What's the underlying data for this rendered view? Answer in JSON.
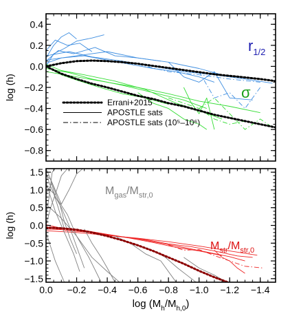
{
  "chart_data": [
    {
      "type": "line",
      "xlabel": "",
      "ylabel": "log (h)",
      "xlim": [
        0.0,
        -1.5
      ],
      "ylim": [
        -0.9,
        0.5
      ],
      "xticks": [
        0.0,
        -0.2,
        -0.4,
        -0.6,
        -0.8,
        -1.0,
        -1.2,
        -1.4
      ],
      "yticks": [
        0.4,
        0.2,
        0.0,
        -0.2,
        -0.4,
        -0.6,
        -0.8
      ],
      "yticklabels": [
        "0.4",
        "0.2",
        "0.0",
        "−0.2",
        "−0.4",
        "−0.6",
        "−0.8"
      ],
      "xticklabels_shown": false,
      "annotations": [
        {
          "text": "r",
          "sub": "1/2",
          "color": "#1c1cb0"
        },
        {
          "text": "σ",
          "sub": "",
          "color": "#1aa01a"
        }
      ],
      "legend": {
        "placement": "lower-left",
        "entries": [
          {
            "label": "Errani+2015",
            "style": "dotted"
          },
          {
            "label": "APOSTLE sats",
            "style": "solid"
          },
          {
            "label": "APOSTLE sats (10⁵–10⁶)",
            "style": "dashdot"
          }
        ]
      },
      "colors": {
        "r_half": "#3d8de0",
        "sigma": "#33dd33",
        "model": "#000000"
      },
      "series": [
        {
          "name": "Errani+2015",
          "color": "#000000",
          "style": "dotted",
          "group": "r_half",
          "x": [
            0.0,
            -0.1,
            -0.2,
            -0.3,
            -0.4,
            -0.5,
            -0.6,
            -0.7,
            -0.8,
            -0.9,
            -1.0,
            -1.1,
            -1.2,
            -1.3,
            -1.4,
            -1.5
          ],
          "y": [
            0.0,
            0.03,
            0.05,
            0.055,
            0.05,
            0.04,
            0.025,
            0.005,
            -0.015,
            -0.035,
            -0.055,
            -0.075,
            -0.09,
            -0.105,
            -0.12,
            -0.14
          ]
        },
        {
          "name": "Errani+2015",
          "color": "#000000",
          "style": "dotted",
          "group": "sigma",
          "x": [
            0.0,
            -0.1,
            -0.2,
            -0.3,
            -0.4,
            -0.5,
            -0.6,
            -0.7,
            -0.8,
            -0.9,
            -1.0,
            -1.1,
            -1.2,
            -1.3,
            -1.4,
            -1.5
          ],
          "y": [
            0.0,
            -0.07,
            -0.12,
            -0.165,
            -0.2,
            -0.24,
            -0.28,
            -0.31,
            -0.35,
            -0.38,
            -0.42,
            -0.46,
            -0.49,
            -0.52,
            -0.55,
            -0.58
          ]
        },
        {
          "color": "#3d8de0",
          "style": "solid",
          "group": "r_half",
          "x": [
            0.0,
            -0.05,
            -0.12,
            -0.2,
            -0.3,
            -0.38
          ],
          "y": [
            0.0,
            0.12,
            0.17,
            0.24,
            0.27,
            0.3
          ]
        },
        {
          "color": "#3d8de0",
          "style": "solid",
          "group": "r_half",
          "x": [
            0.0,
            -0.08,
            -0.18,
            -0.32,
            -0.45,
            -0.6,
            -0.75
          ],
          "y": [
            0.05,
            0.15,
            0.12,
            0.18,
            0.1,
            0.08,
            0.05
          ]
        },
        {
          "color": "#3d8de0",
          "style": "solid",
          "group": "r_half",
          "x": [
            0.0,
            -0.1,
            -0.25,
            -0.4,
            -0.55,
            -0.7,
            -0.85,
            -1.0,
            -1.1
          ],
          "y": [
            0.03,
            0.08,
            0.1,
            0.06,
            0.02,
            -0.02,
            -0.05,
            -0.1,
            -0.15
          ]
        },
        {
          "color": "#3d8de0",
          "style": "solid",
          "group": "r_half",
          "x": [
            0.0,
            -0.15,
            -0.3,
            -0.5,
            -0.7,
            -0.9,
            -1.1,
            -1.3,
            -1.48
          ],
          "y": [
            0.1,
            0.14,
            0.09,
            0.05,
            0.0,
            -0.05,
            -0.08,
            -0.12,
            -0.16
          ]
        },
        {
          "color": "#3d8de0",
          "style": "solid",
          "group": "r_half",
          "x": [
            0.0,
            -0.06,
            -0.14,
            -0.22,
            -0.3
          ],
          "y": [
            0.15,
            0.25,
            0.2,
            0.22,
            0.14
          ]
        },
        {
          "color": "#3d8de0",
          "style": "solid",
          "group": "r_half",
          "x": [
            0.0,
            -0.2,
            -0.4,
            -0.6,
            -0.8,
            -1.0,
            -1.15
          ],
          "y": [
            0.06,
            0.1,
            0.14,
            0.08,
            0.04,
            -0.02,
            -0.08
          ]
        },
        {
          "color": "#3d8de0",
          "style": "solid",
          "group": "r_half",
          "x": [
            -0.8,
            -0.9,
            -1.0,
            -1.1,
            -1.2,
            -1.35
          ],
          "y": [
            0.04,
            -0.1,
            -0.15,
            -0.05,
            -0.3,
            -0.32
          ]
        },
        {
          "color": "#3d8de0",
          "style": "solid",
          "group": "r_half",
          "x": [
            0.0,
            -0.05,
            -0.1,
            -0.15,
            -0.2
          ],
          "y": [
            0.08,
            0.2,
            0.28,
            0.32,
            0.26
          ]
        },
        {
          "color": "#3d8de0",
          "style": "dashdot",
          "group": "r_half",
          "x": [
            -0.6,
            -0.8,
            -1.0,
            -1.2,
            -1.4
          ],
          "y": [
            0.02,
            -0.05,
            -0.08,
            -0.12,
            -0.15
          ]
        },
        {
          "color": "#3d8de0",
          "style": "dashdot",
          "group": "r_half",
          "x": [
            -1.0,
            -1.1,
            -1.2,
            -1.3,
            -1.4
          ],
          "y": [
            -0.05,
            -0.3,
            -0.25,
            -0.4,
            -0.2
          ]
        },
        {
          "color": "#33dd33",
          "style": "solid",
          "group": "sigma",
          "x": [
            0.0,
            -0.1,
            -0.2,
            -0.35,
            -0.5,
            -0.65,
            -0.8
          ],
          "y": [
            0.0,
            -0.08,
            -0.13,
            -0.2,
            -0.26,
            -0.3,
            -0.36
          ]
        },
        {
          "color": "#33dd33",
          "style": "solid",
          "group": "sigma",
          "x": [
            0.0,
            -0.15,
            -0.3,
            -0.5,
            -0.7,
            -0.9,
            -1.05
          ],
          "y": [
            -0.02,
            -0.06,
            -0.12,
            -0.18,
            -0.25,
            -0.32,
            -0.4
          ]
        },
        {
          "color": "#33dd33",
          "style": "solid",
          "group": "sigma",
          "x": [
            0.0,
            -0.1,
            -0.25,
            -0.45,
            -0.65,
            -0.85,
            -1.0,
            -1.15
          ],
          "y": [
            0.02,
            -0.04,
            -0.08,
            -0.14,
            -0.22,
            -0.35,
            -0.42,
            -0.5
          ]
        },
        {
          "color": "#33dd33",
          "style": "solid",
          "group": "sigma",
          "x": [
            0.0,
            -0.2,
            -0.4,
            -0.6,
            -0.8,
            -1.0,
            -1.2,
            -1.4
          ],
          "y": [
            -0.05,
            -0.1,
            -0.15,
            -0.2,
            -0.26,
            -0.33,
            -0.38,
            -0.44
          ]
        },
        {
          "color": "#33dd33",
          "style": "solid",
          "group": "sigma",
          "x": [
            -0.6,
            -0.7,
            -0.8,
            -0.9,
            -1.0,
            -1.05
          ],
          "y": [
            -0.25,
            -0.35,
            -0.4,
            -0.5,
            -0.55,
            -0.6
          ]
        },
        {
          "color": "#33dd33",
          "style": "solid",
          "group": "sigma",
          "x": [
            -0.9,
            -0.95,
            -1.0,
            -1.05,
            -1.1
          ],
          "y": [
            -0.2,
            -0.35,
            -0.45,
            -0.3,
            -0.6
          ]
        },
        {
          "color": "#33dd33",
          "style": "dashdot",
          "group": "sigma",
          "x": [
            -1.0,
            -1.1,
            -1.2,
            -1.3,
            -1.4,
            -1.48
          ],
          "y": [
            -0.4,
            -0.3,
            -0.45,
            -0.6,
            -0.5,
            -0.58
          ]
        },
        {
          "color": "#33dd33",
          "style": "dashdot",
          "group": "sigma",
          "x": [
            -0.8,
            -0.9,
            -1.0,
            -1.1,
            -1.2,
            -1.3
          ],
          "y": [
            -0.3,
            -0.35,
            -0.4,
            -0.5,
            -0.55,
            -0.52
          ]
        }
      ]
    },
    {
      "type": "line",
      "xlabel": "log (Mₕ/Mₕ,₀)",
      "xlabel_main": "log (M",
      "xlabel_sub1": "h",
      "xlabel_mid": "/M",
      "xlabel_sub2": "h,0",
      "xlabel_end": ")",
      "ylabel": "log (h)",
      "xlim": [
        0.0,
        -1.5
      ],
      "ylim": [
        -1.6,
        1.6
      ],
      "xticks": [
        0.0,
        -0.2,
        -0.4,
        -0.6,
        -0.8,
        -1.0,
        -1.2,
        -1.4
      ],
      "xticklabels": [
        "0.0",
        "−0.2",
        "−0.4",
        "−0.6",
        "−0.8",
        "−1.0",
        "−1.2",
        "−1.4"
      ],
      "yticks": [
        1.5,
        1.0,
        0.5,
        0.0,
        -0.5,
        -1.0,
        -1.5
      ],
      "yticklabels": [
        "1.5",
        "1.0",
        "0.5",
        "0.0",
        "−0.5",
        "−1.0",
        "−1.5"
      ],
      "annotations": [
        {
          "main": "M",
          "sub1": "gas",
          "mid": "/M",
          "sub2": "str,0",
          "color": "#808080"
        },
        {
          "main": "M",
          "sub1": "str",
          "mid": "/M",
          "sub2": "str,0",
          "color": "#dd1111"
        }
      ],
      "colors": {
        "gas": "#808080",
        "stellar": "#ee2222",
        "model": "#8b0000"
      },
      "series": [
        {
          "name": "Errani+2015",
          "color": "#8b0000",
          "style": "dotted",
          "x": [
            0.0,
            -0.1,
            -0.2,
            -0.3,
            -0.4,
            -0.5,
            -0.6,
            -0.7,
            -0.8,
            -0.9,
            -1.0,
            -1.1,
            -1.2
          ],
          "y": [
            -0.06,
            -0.08,
            -0.12,
            -0.2,
            -0.3,
            -0.42,
            -0.56,
            -0.72,
            -0.9,
            -1.08,
            -1.28,
            -1.46,
            -1.62
          ]
        },
        {
          "color": "#ee2222",
          "style": "solid",
          "x": [
            0.0,
            -0.1,
            -0.2,
            -0.35,
            -0.5,
            -0.65,
            -0.8,
            -0.95,
            -1.1,
            -1.25,
            -1.35
          ],
          "y": [
            -0.1,
            -0.12,
            -0.16,
            -0.22,
            -0.32,
            -0.4,
            -0.52,
            -0.6,
            -0.72,
            -0.86,
            -0.9
          ]
        },
        {
          "color": "#ee2222",
          "style": "solid",
          "x": [
            0.0,
            -0.15,
            -0.3,
            -0.45,
            -0.6,
            -0.75,
            -0.9,
            -1.05,
            -1.2,
            -1.3
          ],
          "y": [
            -0.05,
            -0.15,
            -0.2,
            -0.3,
            -0.38,
            -0.5,
            -0.62,
            -0.75,
            -0.88,
            -1.0
          ]
        },
        {
          "color": "#ee2222",
          "style": "solid",
          "x": [
            0.0,
            -0.1,
            -0.25,
            -0.4,
            -0.55,
            -0.7,
            -0.85,
            -1.0,
            -1.15
          ],
          "y": [
            0.02,
            -0.08,
            -0.14,
            -0.25,
            -0.36,
            -0.48,
            -0.62,
            -0.72,
            -0.85
          ]
        },
        {
          "color": "#ee2222",
          "style": "solid",
          "x": [
            0.0,
            -0.2,
            -0.4,
            -0.6,
            -0.8,
            -1.0,
            -1.2,
            -1.38
          ],
          "y": [
            -0.15,
            -0.2,
            -0.28,
            -0.36,
            -0.46,
            -0.58,
            -0.72,
            -0.84
          ]
        },
        {
          "color": "#ee2222",
          "style": "dashdot",
          "x": [
            -0.8,
            -0.9,
            -1.0,
            -1.1,
            -1.2,
            -1.3,
            -1.42
          ],
          "y": [
            -0.55,
            -0.7,
            -0.68,
            -0.85,
            -1.0,
            -1.15,
            -1.2
          ]
        },
        {
          "color": "#ee2222",
          "style": "solid",
          "x": [
            -1.1,
            -1.15,
            -1.2,
            -1.25,
            -1.3
          ],
          "y": [
            -0.7,
            -0.9,
            -1.0,
            -1.2,
            -1.35
          ]
        },
        {
          "color": "#808080",
          "style": "solid",
          "x": [
            0.0,
            -0.02,
            -0.05,
            -0.08,
            -0.1,
            -0.12
          ],
          "y": [
            1.5,
            1.2,
            0.9,
            0.5,
            0.2,
            -0.1
          ]
        },
        {
          "color": "#808080",
          "style": "solid",
          "x": [
            0.0,
            -0.03,
            -0.06,
            -0.09,
            -0.12,
            -0.16,
            -0.2
          ],
          "y": [
            1.4,
            1.3,
            0.8,
            0.6,
            0.1,
            -0.4,
            -0.8
          ]
        },
        {
          "color": "#808080",
          "style": "solid",
          "x": [
            0.0,
            -0.05,
            -0.1,
            -0.15,
            -0.2,
            -0.25
          ],
          "y": [
            1.1,
            0.9,
            0.5,
            0.0,
            -0.6,
            -1.2
          ]
        },
        {
          "color": "#808080",
          "style": "solid",
          "x": [
            0.0,
            -0.04,
            -0.08,
            -0.14,
            -0.2,
            -0.28,
            -0.36
          ],
          "y": [
            0.9,
            1.2,
            0.7,
            0.3,
            -0.3,
            -0.9,
            -1.6
          ]
        },
        {
          "color": "#808080",
          "style": "solid",
          "x": [
            0.0,
            -0.02,
            -0.04,
            -0.06
          ],
          "y": [
            0.3,
            0.8,
            1.5,
            1.6
          ]
        },
        {
          "color": "#808080",
          "style": "solid",
          "x": [
            0.0,
            -0.03,
            -0.07,
            -0.1,
            -0.14
          ],
          "y": [
            0.0,
            0.5,
            1.0,
            1.4,
            1.6
          ]
        },
        {
          "color": "#808080",
          "style": "solid",
          "x": [
            0.0,
            -0.05,
            -0.1,
            -0.15,
            -0.2,
            -0.24
          ],
          "y": [
            1.6,
            1.1,
            0.6,
            1.0,
            1.45,
            1.6
          ]
        },
        {
          "color": "#808080",
          "style": "solid",
          "x": [
            0.0,
            -0.03,
            -0.06,
            -0.09,
            -0.12
          ],
          "y": [
            -0.2,
            -0.6,
            -1.0,
            -1.3,
            -1.6
          ]
        },
        {
          "color": "#808080",
          "style": "solid",
          "x": [
            0.0,
            -0.06,
            -0.12,
            -0.18,
            -0.22
          ],
          "y": [
            1.2,
            0.4,
            -0.2,
            -0.8,
            -1.3
          ]
        },
        {
          "color": "#808080",
          "style": "solid",
          "x": [
            0.0,
            -0.1,
            -0.2,
            -0.3,
            -0.4,
            -0.48
          ],
          "y": [
            0.6,
            0.2,
            -0.3,
            -0.9,
            -1.3,
            -1.6
          ]
        },
        {
          "color": "#808080",
          "style": "solid",
          "x": [
            -0.45,
            -0.55,
            -0.65,
            -0.75,
            -0.85
          ],
          "y": [
            -0.3,
            -0.5,
            -0.8,
            -1.0,
            -1.6
          ]
        },
        {
          "color": "#808080",
          "style": "solid",
          "x": [
            -0.7,
            -0.78,
            -0.86,
            -0.92,
            -0.98
          ],
          "y": [
            -0.7,
            -0.9,
            -1.2,
            -1.4,
            -1.6
          ]
        },
        {
          "color": "#808080",
          "style": "solid",
          "x": [
            -0.9,
            -1.0,
            -1.1,
            -1.18
          ],
          "y": [
            -0.9,
            -1.2,
            -1.4,
            -1.6
          ]
        },
        {
          "color": "#808080",
          "style": "solid",
          "x": [
            -0.25,
            -0.3,
            -0.36,
            -0.4,
            -0.45
          ],
          "y": [
            -0.1,
            -0.5,
            -0.9,
            -1.2,
            -1.6
          ]
        }
      ]
    }
  ]
}
